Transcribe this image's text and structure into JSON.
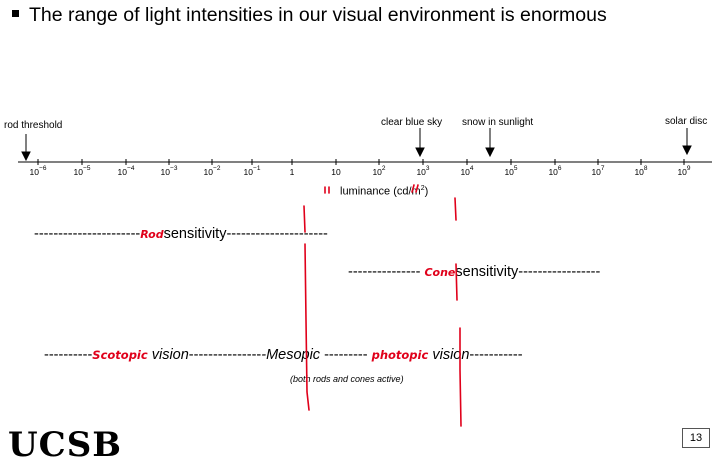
{
  "slide": {
    "bullet": "The range of light intensities in our visual environment is enormous",
    "page_number": "13",
    "logo_text": "UCSB"
  },
  "scale": {
    "markers": {
      "rod_threshold": "rod threshold",
      "clear_blue_sky": "clear blue sky",
      "snow_in_sunlight": "snow in sunlight",
      "solar_disc": "solar disc"
    },
    "ticks": {
      "t0": {
        "base": "10",
        "exp": "−6"
      },
      "t1": {
        "base": "10",
        "exp": "−5"
      },
      "t2": {
        "base": "10",
        "exp": "−4"
      },
      "t3": {
        "base": "10",
        "exp": "−3"
      },
      "t4": {
        "base": "10",
        "exp": "−2"
      },
      "t5": {
        "base": "10",
        "exp": "−1"
      },
      "t6": {
        "base": "1",
        "exp": ""
      },
      "t7": {
        "base": "10",
        "exp": ""
      },
      "t8": {
        "base": "10",
        "exp": "2"
      },
      "t9": {
        "base": "10",
        "exp": "3"
      },
      "t10": {
        "base": "10",
        "exp": "4"
      },
      "t11": {
        "base": "10",
        "exp": "5"
      },
      "t12": {
        "base": "10",
        "exp": "6"
      },
      "t13": {
        "base": "10",
        "exp": "7"
      },
      "t14": {
        "base": "10",
        "exp": "8"
      },
      "t15": {
        "base": "10",
        "exp": "9"
      }
    },
    "axis_title": {
      "text": "luminance (cd/m",
      "exp": "2",
      "close": ")"
    }
  },
  "rows": {
    "rod": {
      "dashes_left": "----------------------",
      "handwritten": "Rod",
      "label": "sensitivity",
      "dashes_right": "---------------------"
    },
    "cone": {
      "dashes_left": "---------------",
      "handwritten": "Cone",
      "label": "sensitivity",
      "dashes_right": "-----------------"
    },
    "vision": {
      "dashes_1": "----------",
      "scotopic_hand": "Scotopic",
      "vision_1": "vision",
      "dashes_2": "---------------",
      "mesopic": "-Mesopic ",
      "dashes_3": "---------",
      "photopic_hand": "photopic",
      "vision_2": "vision",
      "dashes_4": "-----------"
    },
    "note": "(both rods and cones active)"
  },
  "colors": {
    "annotation": "#e0001a",
    "text": "#000000",
    "axis": "#000000"
  }
}
